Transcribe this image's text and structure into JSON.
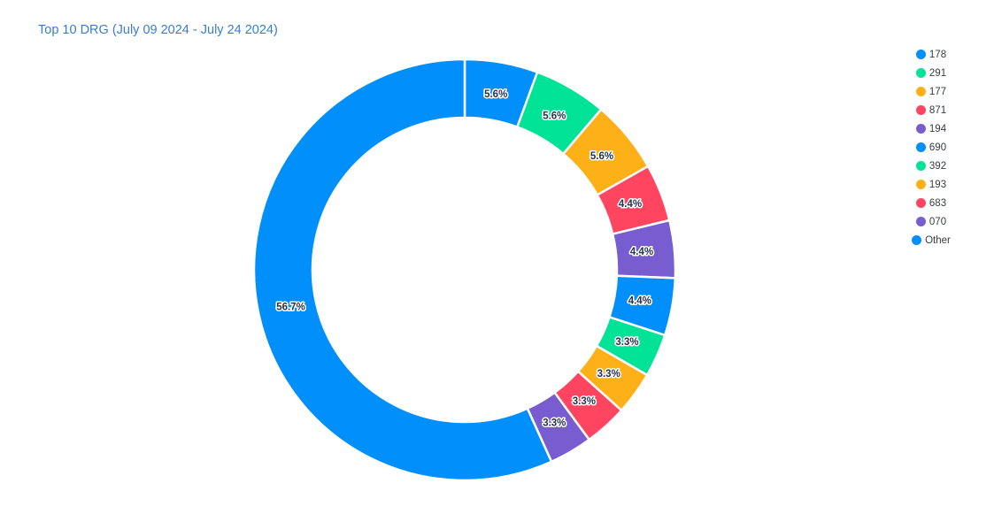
{
  "header": {
    "title": "Top 10 DRG (July 09 2024 - July 24 2024)"
  },
  "chart_data": {
    "type": "pie",
    "subtype": "donut",
    "title": "Top 10 DRG (July 09 2024 - July 24 2024)",
    "legend_position": "right",
    "start_angle_deg": 0,
    "direction": "clockwise",
    "labels": [
      "178",
      "291",
      "177",
      "871",
      "194",
      "690",
      "392",
      "193",
      "683",
      "070",
      "Other"
    ],
    "values_pct": [
      5.6,
      5.6,
      5.6,
      4.4,
      4.4,
      4.4,
      3.3,
      3.3,
      3.3,
      3.3,
      56.7
    ],
    "data_labels": [
      "5.6%",
      "5.6%",
      "5.6%",
      "4.4%",
      "4.4%",
      "4.4%",
      "3.3%",
      "3.3%",
      "3.3%",
      "3.3%",
      "56.7%"
    ],
    "slice_colors": [
      "#008FFB",
      "#00E396",
      "#FEB019",
      "#FF4560",
      "#775DD0",
      "#008FFB",
      "#00E396",
      "#FEB019",
      "#FF4560",
      "#775DD0",
      "#008FFB"
    ],
    "palette": [
      "#008FFB",
      "#00E396",
      "#FEB019",
      "#FF4560",
      "#775DD0"
    ],
    "colors": {
      "title_text": "#3b7dc9",
      "legend_text": "#373d3f",
      "data_label_text": "#26334d",
      "slice_border": "#ffffff",
      "background": "#ffffff"
    }
  }
}
